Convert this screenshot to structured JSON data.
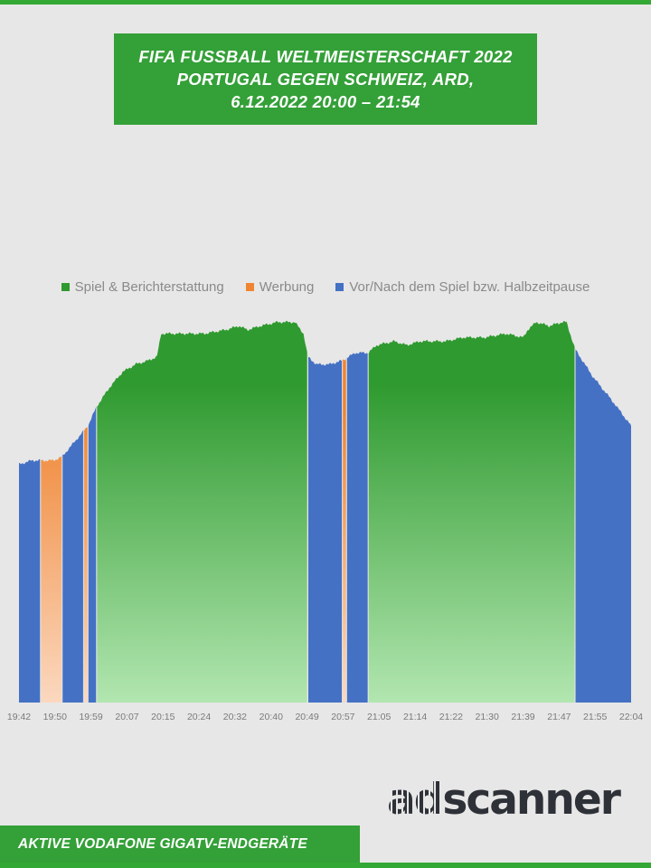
{
  "header": {
    "title_lines": [
      "FIFA FUSSBALL WELTMEISTERSCHAFT 2022",
      "PORTUGAL GEGEN SCHWEIZ, ARD,",
      "6.12.2022  20:00 – 21:54"
    ]
  },
  "footer": {
    "brand_ad": "ad",
    "brand_rest": "scanner",
    "caption": "AKTIVE VODAFONE GIGATV-ENDGERÄTE"
  },
  "colors": {
    "spiel_top": "#2f9a2f",
    "spiel_bottom": "#b2e6b0",
    "werbung_top": "#ef8533",
    "werbung_bottom": "#fbd8bf",
    "vor_nach": "#4471c4"
  },
  "chart_data": {
    "type": "area",
    "title": "",
    "xlabel": "",
    "ylabel": "",
    "grid": false,
    "legend_position": "top-center",
    "x_start": "19:42",
    "x_end": "22:04",
    "x_ticks": [
      "19:42",
      "19:50",
      "19:59",
      "20:07",
      "20:15",
      "20:24",
      "20:32",
      "20:40",
      "20:49",
      "20:57",
      "21:05",
      "21:14",
      "21:22",
      "21:30",
      "21:39",
      "21:47",
      "21:55",
      "22:04"
    ],
    "ylim": [
      0,
      1
    ],
    "legend": [
      {
        "name": "Spiel & Berichterstattung",
        "color": "#2f9a2f"
      },
      {
        "name": "Werbung",
        "color": "#ef8533"
      },
      {
        "name": "Vor/Nach dem Spiel bzw. Halbzeitpause",
        "color": "#4471c4"
      }
    ],
    "series_profile": {
      "t": [
        "19:42",
        "19:45",
        "19:47",
        "19:50",
        "19:52",
        "19:55",
        "19:58",
        "20:00",
        "20:03",
        "20:06",
        "20:09",
        "20:12",
        "20:14",
        "20:15",
        "20:20",
        "20:25",
        "20:30",
        "20:33",
        "20:35",
        "20:38",
        "20:42",
        "20:46",
        "20:48",
        "20:49",
        "20:51",
        "20:54",
        "20:57",
        "21:00",
        "21:03",
        "21:05",
        "21:09",
        "21:12",
        "21:15",
        "21:21",
        "21:25",
        "21:30",
        "21:35",
        "21:39",
        "21:40",
        "21:42",
        "21:45",
        "21:48",
        "21:49",
        "21:51",
        "21:55",
        "22:00",
        "22:04"
      ],
      "v": [
        0.62,
        0.63,
        0.63,
        0.63,
        0.64,
        0.68,
        0.72,
        0.77,
        0.82,
        0.86,
        0.88,
        0.89,
        0.9,
        0.96,
        0.96,
        0.96,
        0.97,
        0.98,
        0.97,
        0.98,
        0.99,
        0.99,
        0.96,
        0.9,
        0.88,
        0.88,
        0.89,
        0.91,
        0.91,
        0.93,
        0.94,
        0.93,
        0.94,
        0.94,
        0.95,
        0.95,
        0.96,
        0.95,
        0.97,
        0.99,
        0.98,
        0.99,
        0.99,
        0.92,
        0.85,
        0.78,
        0.72
      ]
    },
    "segments": [
      {
        "type": "Vor/Nach dem Spiel bzw. Halbzeitpause",
        "start": "19:42",
        "end": "19:47"
      },
      {
        "type": "Werbung",
        "start": "19:47",
        "end": "19:52"
      },
      {
        "type": "Vor/Nach dem Spiel bzw. Halbzeitpause",
        "start": "19:52",
        "end": "19:57"
      },
      {
        "type": "Werbung",
        "start": "19:57",
        "end": "19:58"
      },
      {
        "type": "Vor/Nach dem Spiel bzw. Halbzeitpause",
        "start": "19:58",
        "end": "20:00"
      },
      {
        "type": "Spiel & Berichterstattung",
        "start": "20:00",
        "end": "20:49"
      },
      {
        "type": "Werbung",
        "start": "20:49",
        "end": "20:49"
      },
      {
        "type": "Vor/Nach dem Spiel bzw. Halbzeitpause",
        "start": "20:49",
        "end": "20:57"
      },
      {
        "type": "Werbung",
        "start": "20:57",
        "end": "20:58"
      },
      {
        "type": "Vor/Nach dem Spiel bzw. Halbzeitpause",
        "start": "20:58",
        "end": "21:03"
      },
      {
        "type": "Spiel & Berichterstattung",
        "start": "21:03",
        "end": "21:51"
      },
      {
        "type": "Vor/Nach dem Spiel bzw. Halbzeitpause",
        "start": "21:51",
        "end": "22:04"
      }
    ]
  }
}
